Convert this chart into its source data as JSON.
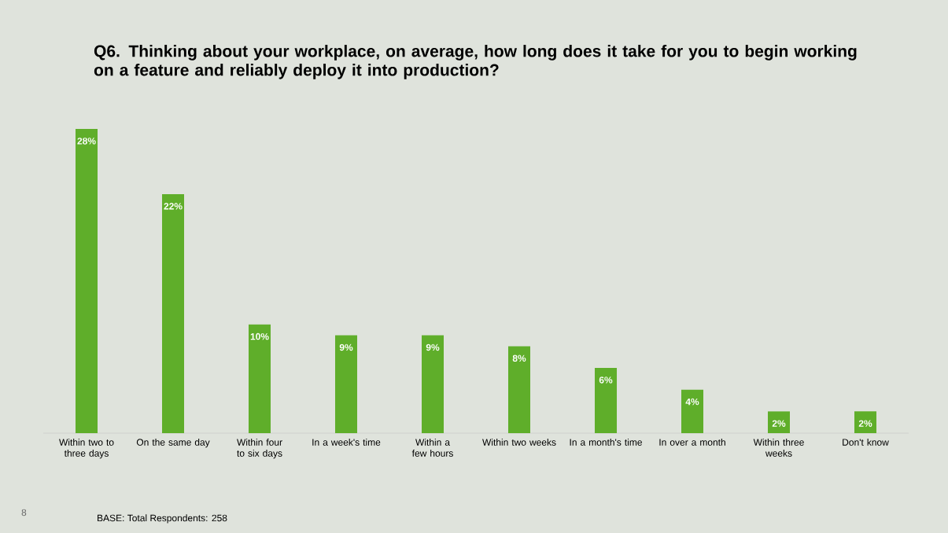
{
  "chart_data": {
    "type": "bar",
    "title": "Q6. Thinking about your workplace, on average, how long does it take for you to begin working on a feature and reliably deploy it into production?",
    "categories": [
      "Within two to three days",
      "On the same day",
      "Within four to six days",
      "In a week's time",
      "Within a few hours",
      "Within two weeks",
      "In a month's time",
      "In over a month",
      "Within three weeks",
      "Don't know"
    ],
    "values": [
      28,
      22,
      10,
      9,
      9,
      8,
      6,
      4,
      2,
      2
    ],
    "value_labels": [
      "28%",
      "22%",
      "10%",
      "9%",
      "9%",
      "8%",
      "6%",
      "4%",
      "2%",
      "2%"
    ],
    "color": "#5fae2a",
    "tick_labels": "x",
    "annotations": [
      "8",
      "BASE: Total Respondents: 258"
    ]
  }
}
